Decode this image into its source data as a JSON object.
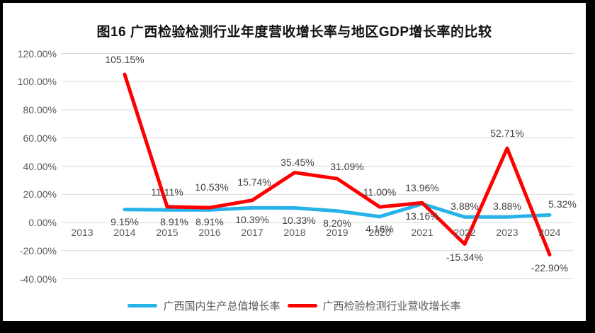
{
  "frame": {
    "border_color": "#000000",
    "chart_background": "#ffffff"
  },
  "chart_data": {
    "type": "line",
    "title": "图16 广西检验检测行业年度营收增长率与地区GDP增长率的比较",
    "categories": [
      "2013",
      "2014",
      "2015",
      "2016",
      "2017",
      "2018",
      "2019",
      "2020",
      "2021",
      "2022",
      "2023",
      "2024"
    ],
    "y_axis": {
      "ticks": [
        "120.00%",
        "100.00%",
        "80.00%",
        "60.00%",
        "40.00%",
        "20.00%",
        "0.00%",
        "-20.00%",
        "-40.00%"
      ],
      "tick_values": [
        120,
        100,
        80,
        60,
        40,
        20,
        0,
        -20,
        -40
      ],
      "min": -40,
      "max": 120,
      "grid": true,
      "grid_color": "#d9d9d9"
    },
    "series": [
      {
        "id": "gdp",
        "name": "广西国内生产总值增长率",
        "color": "#27B2E8",
        "values": [
          null,
          9.15,
          8.91,
          8.91,
          10.39,
          10.33,
          8.2,
          4.16,
          13.16,
          3.88,
          3.88,
          5.32
        ],
        "labels": [
          null,
          "9.15%",
          "8.91%",
          "8.91%",
          "10.39%",
          "10.33%",
          "8.20%",
          "4.16%",
          "13.16%",
          "3.88%",
          "3.88%",
          "5.32%"
        ],
        "label_side": [
          null,
          "below",
          "below",
          "below",
          "below",
          "below",
          "below",
          "below",
          "below",
          "above",
          "above",
          "above"
        ]
      },
      {
        "id": "revenue",
        "name": "广西检验检测行业营收增长率",
        "color": "#FF0000",
        "values": [
          null,
          105.15,
          11.11,
          10.53,
          15.74,
          35.45,
          31.09,
          11.0,
          13.96,
          -15.34,
          52.71,
          -22.9
        ],
        "labels": [
          null,
          "105.15%",
          "11.11%",
          "10.53%",
          "15.74%",
          "35.45%",
          "31.09%",
          "11.00%",
          "13.96%",
          "-15.34%",
          "52.71%",
          "-22.90%"
        ],
        "label_side": [
          null,
          "above",
          "above",
          "above",
          "above",
          "above",
          "above",
          "above",
          "above",
          "below",
          "above",
          "below"
        ]
      }
    ],
    "legend_position": "bottom",
    "label_color": "#404040",
    "axis_label_color": "#595959"
  }
}
